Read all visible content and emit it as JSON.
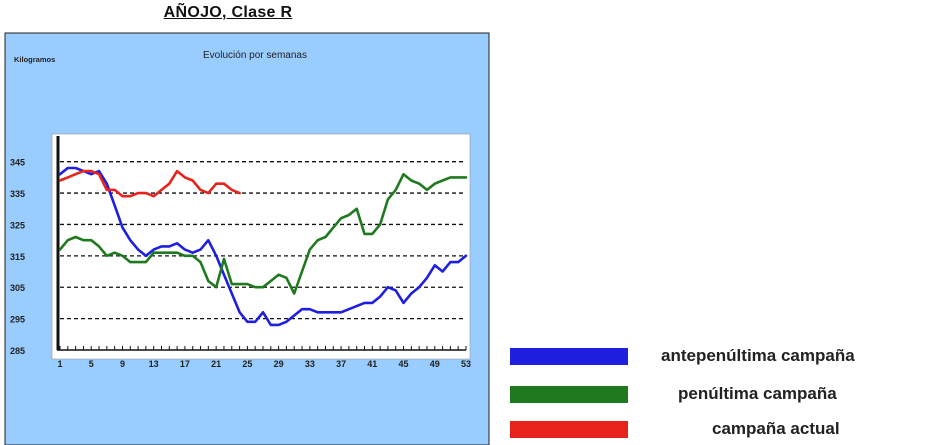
{
  "chart_data": {
    "type": "line",
    "title": "AÑOJO, Clase R",
    "subtitle": "Evolución por semanas",
    "ylabel": "Kilogramos",
    "xlabel": "",
    "ylim": [
      285,
      350
    ],
    "xlim": [
      1,
      53
    ],
    "yticks": [
      285,
      295,
      305,
      315,
      325,
      335,
      345
    ],
    "xticks": [
      1,
      5,
      9,
      13,
      17,
      21,
      25,
      29,
      33,
      37,
      41,
      45,
      49,
      53
    ],
    "grid": true,
    "legend_position": "right",
    "series": [
      {
        "name": "antepenúltima campaña",
        "color": "#1f1fe0",
        "x": [
          1,
          2,
          3,
          4,
          5,
          6,
          7,
          8,
          9,
          10,
          11,
          12,
          13,
          14,
          15,
          16,
          17,
          18,
          19,
          20,
          21,
          22,
          23,
          24,
          25,
          26,
          27,
          28,
          29,
          30,
          31,
          32,
          33,
          34,
          35,
          36,
          37,
          38,
          39,
          40,
          41,
          42,
          43,
          44,
          45,
          46,
          47,
          48,
          49,
          50,
          51,
          52,
          53
        ],
        "values": [
          341,
          343,
          343,
          342,
          341,
          342,
          338,
          331,
          324,
          320,
          317,
          315,
          317,
          318,
          318,
          319,
          317,
          316,
          317,
          320,
          315,
          309,
          303,
          297,
          294,
          294,
          297,
          293,
          293,
          294,
          296,
          298,
          298,
          297,
          297,
          297,
          297,
          298,
          299,
          300,
          300,
          302,
          305,
          304,
          300,
          303,
          305,
          308,
          312,
          310,
          313,
          313,
          315
        ]
      },
      {
        "name": "penúltima campaña",
        "color": "#1f7a1f",
        "x": [
          1,
          2,
          3,
          4,
          5,
          6,
          7,
          8,
          9,
          10,
          11,
          12,
          13,
          14,
          15,
          16,
          17,
          18,
          19,
          20,
          21,
          22,
          23,
          24,
          25,
          26,
          27,
          28,
          29,
          30,
          31,
          32,
          33,
          34,
          35,
          36,
          37,
          38,
          39,
          40,
          41,
          42,
          43,
          44,
          45,
          46,
          47,
          48,
          49,
          50,
          51,
          52,
          53
        ],
        "values": [
          317,
          320,
          321,
          320,
          320,
          318,
          315,
          316,
          315,
          313,
          313,
          313,
          316,
          316,
          316,
          316,
          315,
          315,
          313,
          307,
          305,
          314,
          306,
          306,
          306,
          305,
          305,
          307,
          309,
          308,
          303,
          310,
          317,
          320,
          321,
          324,
          327,
          328,
          330,
          322,
          322,
          325,
          333,
          336,
          341,
          339,
          338,
          336,
          338,
          339,
          340,
          340,
          340
        ]
      },
      {
        "name": "campaña actual",
        "color": "#e8231c",
        "x": [
          1,
          2,
          3,
          4,
          5,
          6,
          7,
          8,
          9,
          10,
          11,
          12,
          13,
          14,
          15,
          16,
          17,
          18,
          19,
          20,
          21,
          22,
          23,
          24
        ],
        "values": [
          339,
          340,
          341,
          342,
          342,
          341,
          336,
          336,
          334,
          334,
          335,
          335,
          334,
          336,
          338,
          342,
          340,
          339,
          336,
          335,
          338,
          338,
          336,
          335
        ]
      }
    ]
  }
}
